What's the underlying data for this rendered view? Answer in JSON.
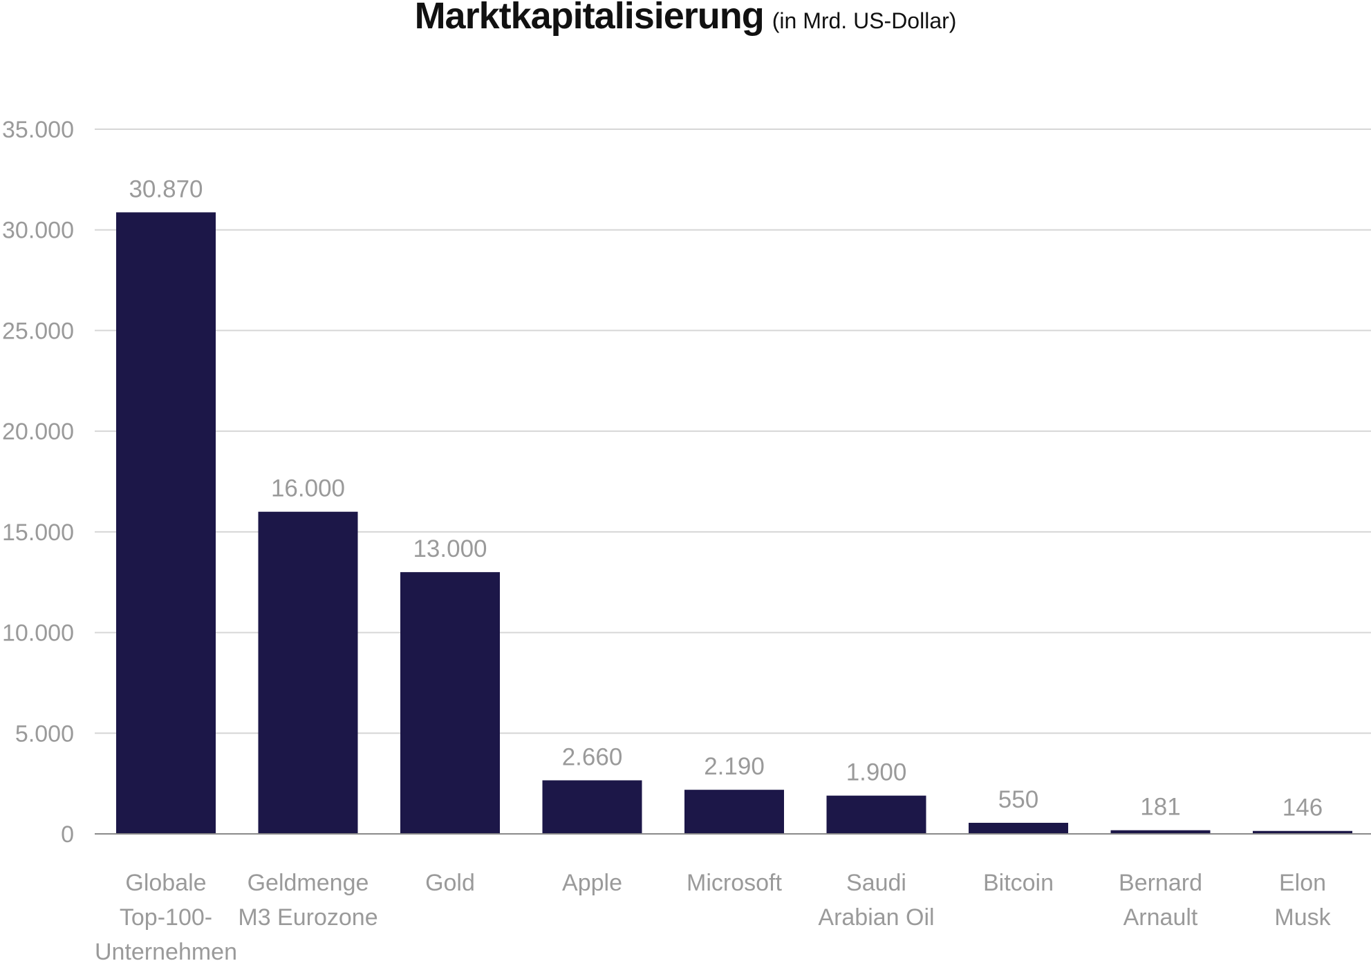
{
  "title": "Marktkapitalisierung",
  "subtitle": "(in Mrd. US-Dollar)",
  "chart_data": {
    "type": "bar",
    "title": "Marktkapitalisierung",
    "subtitle": "(in Mrd. US-Dollar)",
    "xlabel": "",
    "ylabel": "",
    "ylim": [
      0,
      35000
    ],
    "yticks": [
      0,
      5000,
      10000,
      15000,
      20000,
      25000,
      30000,
      35000
    ],
    "ytick_labels": [
      "0",
      "5.000",
      "10.000",
      "15.000",
      "20.000",
      "25.000",
      "30.000",
      "35.000"
    ],
    "grid": true,
    "legend": "none",
    "bar_color": "#1c1748",
    "categories": [
      [
        "Globale",
        "Top-100-",
        "Unternehmen"
      ],
      [
        "Geldmenge",
        "M3 Eurozone"
      ],
      [
        "Gold"
      ],
      [
        "Apple"
      ],
      [
        "Microsoft"
      ],
      [
        "Saudi",
        "Arabian Oil"
      ],
      [
        "Bitcoin"
      ],
      [
        "Bernard",
        "Arnault"
      ],
      [
        "Elon",
        "Musk"
      ]
    ],
    "values": [
      30870,
      16000,
      13000,
      2660,
      2190,
      1900,
      550,
      181,
      146
    ],
    "value_labels": [
      "30.870",
      "16.000",
      "13.000",
      "2.660",
      "2.190",
      "1.900",
      "550",
      "181",
      "146"
    ]
  }
}
